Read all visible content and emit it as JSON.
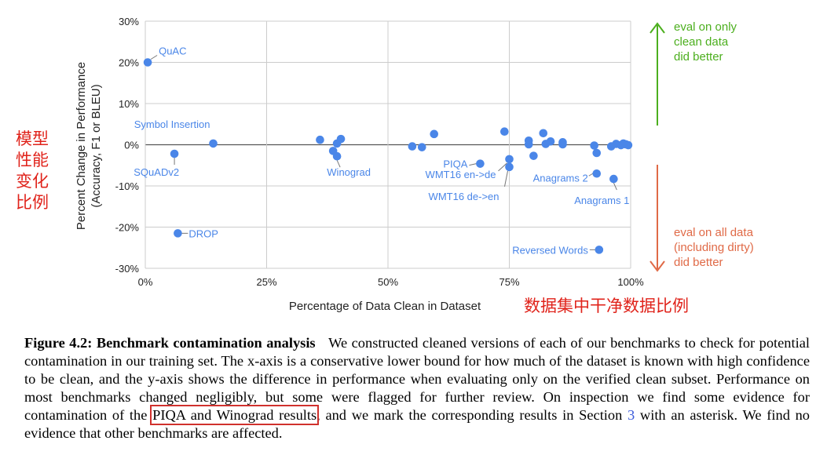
{
  "chart_data": {
    "type": "scatter",
    "xlabel": "Percentage of Data Clean in Dataset",
    "ylabel_line1": "Percent Change in Performance",
    "ylabel_line2": "(Accuracy, F1 or BLEU)",
    "xlim": [
      0,
      100
    ],
    "ylim": [
      -30,
      30
    ],
    "x_ticks": [
      "0%",
      "25%",
      "50%",
      "75%",
      "100%"
    ],
    "y_ticks": [
      "30%",
      "20%",
      "10%",
      "0%",
      "-10%",
      "-20%",
      "-30%"
    ],
    "grid": true,
    "points": [
      {
        "x": 0.5,
        "y": 20,
        "label": "QuAC"
      },
      {
        "x": 14,
        "y": 0.3,
        "label": "Symbol Insertion"
      },
      {
        "x": 6,
        "y": -2.2,
        "label": "SQuADv2"
      },
      {
        "x": 6.7,
        "y": -21.5,
        "label": "DROP"
      },
      {
        "x": 36,
        "y": 1.2
      },
      {
        "x": 38.7,
        "y": -1.5
      },
      {
        "x": 39.5,
        "y": 0.3
      },
      {
        "x": 40.3,
        "y": 1.4
      },
      {
        "x": 39.5,
        "y": -2.8,
        "label": "Winograd"
      },
      {
        "x": 55,
        "y": -0.4
      },
      {
        "x": 57,
        "y": -0.6
      },
      {
        "x": 59.5,
        "y": 2.6
      },
      {
        "x": 69,
        "y": -4.6,
        "label": "PIQA"
      },
      {
        "x": 74,
        "y": 3.2
      },
      {
        "x": 75,
        "y": -3.5,
        "label": "WMT16 en->de"
      },
      {
        "x": 75,
        "y": -5.4,
        "label": "WMT16 de->en"
      },
      {
        "x": 79,
        "y": 1.0
      },
      {
        "x": 79,
        "y": 0.1
      },
      {
        "x": 80,
        "y": -2.7
      },
      {
        "x": 82,
        "y": 2.8
      },
      {
        "x": 82.5,
        "y": 0.2
      },
      {
        "x": 83.5,
        "y": 0.8
      },
      {
        "x": 86,
        "y": 0.6
      },
      {
        "x": 86,
        "y": 0.1
      },
      {
        "x": 92.5,
        "y": -0.2
      },
      {
        "x": 93,
        "y": -2.0
      },
      {
        "x": 93,
        "y": -7.0,
        "label": "Anagrams 2"
      },
      {
        "x": 93.5,
        "y": -25.5,
        "label": "Reversed Words"
      },
      {
        "x": 96,
        "y": -0.4
      },
      {
        "x": 96.5,
        "y": -8.3,
        "label": "Anagrams 1"
      },
      {
        "x": 97,
        "y": 0.2
      },
      {
        "x": 98,
        "y": -0.1
      },
      {
        "x": 98.5,
        "y": 0.3
      },
      {
        "x": 99,
        "y": 0.1
      },
      {
        "x": 99.5,
        "y": -0.1
      }
    ],
    "annotations": {
      "top": [
        "eval on only",
        "clean data",
        "did better"
      ],
      "bottom": [
        "eval on all data",
        "(including dirty)",
        "did better"
      ]
    },
    "colors": {
      "point": "#4a86e8",
      "up": "#4caf1e",
      "down": "#e06a47",
      "grid": "#cccccc",
      "chinese": "#e0231b"
    }
  },
  "chinese_labels": {
    "y_line1": "模型",
    "y_line2": "性能",
    "y_line3": "变化",
    "y_line4": "比例",
    "x": "数据集中干净数据比例"
  },
  "caption": {
    "figure": "Figure 4.2:",
    "title": "Benchmark contamination analysis",
    "text_before": "We constructed cleaned versions of each of our benchmarks to check for potential contamination in our training set. The x-axis is a conservative lower bound for how much of the dataset is known with high confidence to be clean, and the y-axis shows the difference in performance when evaluating only on the verified clean subset. Performance on most benchmarks changed negligibly, but some were flagged for further review. On inspection we find some evidence for contamination of the",
    "highlight": "PIQA and Winograd results",
    "text_middle": ", and we mark the corresponding results in Section",
    "section_ref": "3",
    "text_after": "with an asterisk. We find no evidence that other benchmarks are affected."
  }
}
